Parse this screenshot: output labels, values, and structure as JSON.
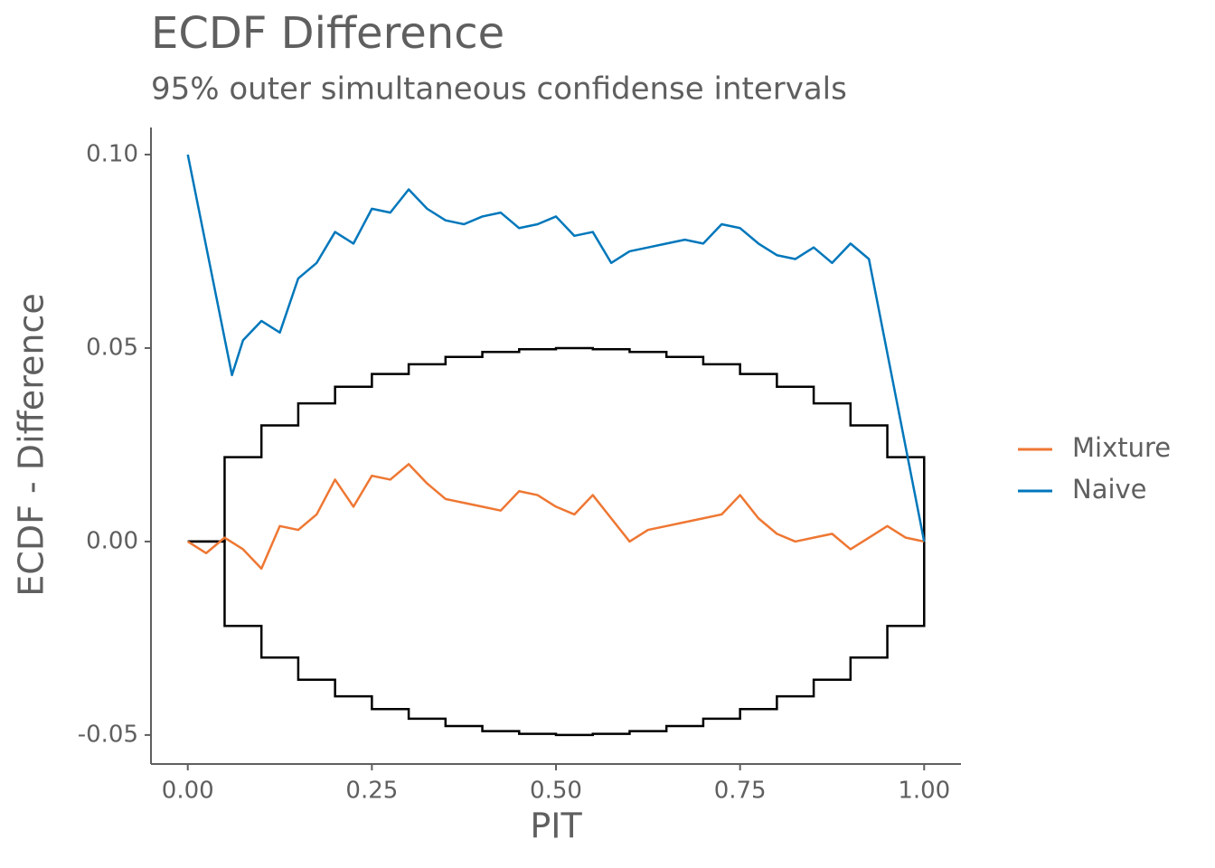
{
  "chart_data": {
    "type": "line",
    "title": "ECDF Difference",
    "subtitle": "95% outer simultaneous confidense intervals",
    "x_label": "PIT",
    "y_label": "ECDF - Difference",
    "xlim": [
      -0.05,
      1.05
    ],
    "ylim": [
      -0.0575,
      0.107
    ],
    "xticks": [
      {
        "value": 0,
        "label": "0.00"
      },
      {
        "value": 0.25,
        "label": "0.25"
      },
      {
        "value": 0.5,
        "label": "0.50"
      },
      {
        "value": 0.75,
        "label": "0.75"
      },
      {
        "value": 1,
        "label": "1.00"
      }
    ],
    "yticks": [
      {
        "value": -0.05,
        "label": "-0.05"
      },
      {
        "value": 0,
        "label": "0.00"
      },
      {
        "value": 0.05,
        "label": "0.05"
      },
      {
        "value": 0.1,
        "label": "0.10"
      }
    ],
    "grid": false,
    "legend": "right",
    "interval": {
      "color": "#000000",
      "x": [
        0,
        0.05,
        0.1,
        0.15,
        0.2,
        0.25,
        0.3,
        0.35,
        0.4,
        0.45,
        0.5,
        0.55,
        0.6,
        0.65,
        0.7,
        0.75,
        0.8,
        0.85,
        0.9,
        0.95,
        1
      ],
      "upper": [
        0,
        0.0218,
        0.03,
        0.0357,
        0.04,
        0.0433,
        0.0458,
        0.0477,
        0.049,
        0.0497,
        0.05,
        0.0497,
        0.049,
        0.0477,
        0.0458,
        0.0433,
        0.04,
        0.0357,
        0.03,
        0.0218,
        0
      ],
      "lower": [
        0,
        -0.0218,
        -0.03,
        -0.0357,
        -0.04,
        -0.0433,
        -0.0458,
        -0.0477,
        -0.049,
        -0.0497,
        -0.05,
        -0.0497,
        -0.049,
        -0.0477,
        -0.0458,
        -0.0433,
        -0.04,
        -0.0357,
        -0.03,
        -0.0218,
        0
      ]
    },
    "series": [
      {
        "name": "Mixture",
        "color": "#ee7733",
        "x": [
          0,
          0.025,
          0.05,
          0.075,
          0.1,
          0.125,
          0.15,
          0.175,
          0.2,
          0.225,
          0.25,
          0.275,
          0.3,
          0.325,
          0.35,
          0.375,
          0.4,
          0.425,
          0.45,
          0.475,
          0.5,
          0.525,
          0.55,
          0.575,
          0.6,
          0.625,
          0.65,
          0.675,
          0.7,
          0.725,
          0.75,
          0.775,
          0.8,
          0.825,
          0.85,
          0.875,
          0.9,
          0.925,
          0.95,
          0.975,
          1
        ],
        "values": [
          0,
          -0.003,
          0.001,
          -0.002,
          -0.007,
          0.004,
          0.003,
          0.007,
          0.016,
          0.009,
          0.017,
          0.016,
          0.02,
          0.015,
          0.011,
          0.01,
          0.009,
          0.008,
          0.013,
          0.012,
          0.009,
          0.007,
          0.012,
          0.006,
          0,
          0.003,
          0.004,
          0.005,
          0.006,
          0.007,
          0.012,
          0.006,
          0.002,
          0,
          0.001,
          0.002,
          -0.002,
          0.001,
          0.004,
          0.001,
          0
        ]
      },
      {
        "name": "Naive",
        "color": "#0077bb",
        "x": [
          0,
          0.06,
          0.075,
          0.1,
          0.125,
          0.15,
          0.175,
          0.2,
          0.225,
          0.25,
          0.275,
          0.3,
          0.325,
          0.35,
          0.375,
          0.4,
          0.425,
          0.45,
          0.475,
          0.5,
          0.525,
          0.55,
          0.575,
          0.6,
          0.625,
          0.65,
          0.675,
          0.7,
          0.725,
          0.75,
          0.775,
          0.8,
          0.825,
          0.85,
          0.875,
          0.9,
          0.925,
          1
        ],
        "values": [
          0.1,
          0.043,
          0.052,
          0.057,
          0.054,
          0.068,
          0.072,
          0.08,
          0.077,
          0.086,
          0.085,
          0.091,
          0.086,
          0.083,
          0.082,
          0.084,
          0.085,
          0.081,
          0.082,
          0.084,
          0.079,
          0.08,
          0.072,
          0.075,
          0.076,
          0.077,
          0.078,
          0.077,
          0.082,
          0.081,
          0.077,
          0.074,
          0.073,
          0.076,
          0.072,
          0.077,
          0.073,
          0
        ]
      }
    ]
  }
}
